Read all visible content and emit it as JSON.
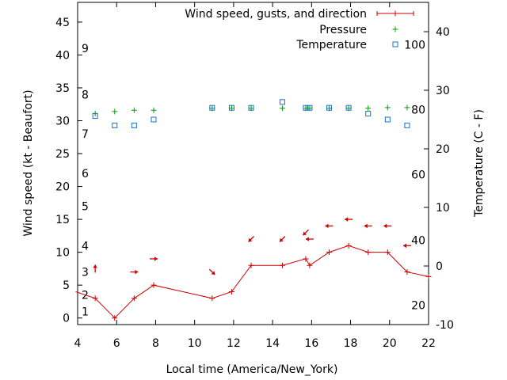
{
  "chart_data": {
    "type": "line",
    "xlabel": "Local time (America/New_York)",
    "ylabel": "Wind speed (kt - Beaufort)",
    "y2label": "Temperature (C - F)",
    "xlim": [
      4,
      22
    ],
    "ylim": [
      -1,
      48
    ],
    "y2lim": [
      -10,
      45
    ],
    "x_ticks": [
      4,
      6,
      8,
      10,
      12,
      14,
      16,
      18,
      20,
      22
    ],
    "y_ticks": [
      0,
      5,
      10,
      15,
      20,
      25,
      30,
      35,
      40,
      45
    ],
    "y2_ticks": [
      -10,
      0,
      10,
      20,
      30,
      40
    ],
    "beaufort_labels": [
      {
        "text": "1",
        "y": 1
      },
      {
        "text": "2",
        "y": 3.5
      },
      {
        "text": "3",
        "y": 7
      },
      {
        "text": "4",
        "y": 11
      },
      {
        "text": "5",
        "y": 17
      },
      {
        "text": "6",
        "y": 22
      },
      {
        "text": "7",
        "y": 28
      },
      {
        "text": "8",
        "y": 34
      },
      {
        "text": "9",
        "y": 41
      }
    ],
    "fahrenheit_labels": [
      {
        "text": "20",
        "c": -6.7
      },
      {
        "text": "40",
        "c": 4.4
      },
      {
        "text": "60",
        "c": 15.6
      },
      {
        "text": "80",
        "c": 26.7
      },
      {
        "text": "100",
        "c": 37.8
      }
    ],
    "legend": {
      "position": "top-right",
      "wind": "Wind speed, gusts, and direction",
      "pressure": "Pressure",
      "temperature": "Temperature"
    },
    "colors": {
      "wind": "#cc0000",
      "pressure": "#00a000",
      "temperature": "#1a6fd1"
    },
    "series": [
      {
        "name": "Wind speed, gusts, and direction",
        "x": [
          3.9,
          4.9,
          5.9,
          6.9,
          7.9,
          10.9,
          11.9,
          12.9,
          14.5,
          15.7,
          15.9,
          16.9,
          17.9,
          18.9,
          19.9,
          20.9,
          22.0
        ],
        "y": [
          4,
          3,
          0,
          3,
          5,
          3,
          4,
          8,
          8,
          9,
          8,
          10,
          11,
          10,
          10,
          7,
          6.3
        ]
      },
      {
        "name": "Pressure",
        "x": [
          4.9,
          5.9,
          6.9,
          7.9,
          10.9,
          11.9,
          12.9,
          14.5,
          15.7,
          15.9,
          16.9,
          17.9,
          18.9,
          19.9,
          20.9
        ],
        "y": [
          31.1,
          31.4,
          31.6,
          31.6,
          31.9,
          31.9,
          31.9,
          31.9,
          31.9,
          31.9,
          31.9,
          31.9,
          31.9,
          32.0,
          32.0
        ]
      },
      {
        "name": "Temperature",
        "x": [
          4.9,
          5.9,
          6.9,
          7.9,
          10.9,
          11.9,
          12.9,
          14.5,
          15.7,
          15.9,
          16.9,
          17.9,
          18.9,
          19.9,
          20.9
        ],
        "y": [
          25.6,
          24,
          24,
          25,
          27,
          27,
          27,
          28,
          27,
          27,
          27,
          27,
          26,
          25,
          24
        ]
      }
    ],
    "wind_arrows": [
      {
        "x": 4.9,
        "y": 7.5,
        "dir": "up"
      },
      {
        "x": 6.9,
        "y": 7,
        "dir": "right"
      },
      {
        "x": 7.9,
        "y": 9,
        "dir": "right"
      },
      {
        "x": 10.9,
        "y": 7,
        "dir": "down-right"
      },
      {
        "x": 12.9,
        "y": 12,
        "dir": "down-left"
      },
      {
        "x": 14.5,
        "y": 12,
        "dir": "down-left"
      },
      {
        "x": 15.7,
        "y": 13,
        "dir": "down-left"
      },
      {
        "x": 15.9,
        "y": 12,
        "dir": "left"
      },
      {
        "x": 16.9,
        "y": 14,
        "dir": "left"
      },
      {
        "x": 17.9,
        "y": 15,
        "dir": "left"
      },
      {
        "x": 18.9,
        "y": 14,
        "dir": "left"
      },
      {
        "x": 19.9,
        "y": 14,
        "dir": "left"
      },
      {
        "x": 20.9,
        "y": 11,
        "dir": "left"
      }
    ]
  }
}
